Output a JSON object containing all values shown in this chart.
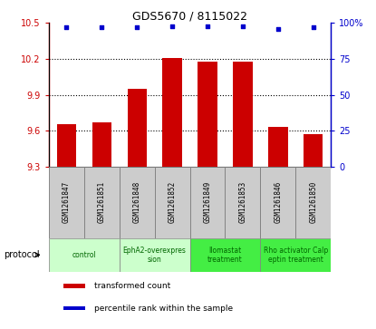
{
  "title": "GDS5670 / 8115022",
  "samples": [
    "GSM1261847",
    "GSM1261851",
    "GSM1261848",
    "GSM1261852",
    "GSM1261849",
    "GSM1261853",
    "GSM1261846",
    "GSM1261850"
  ],
  "bar_values": [
    9.65,
    9.67,
    9.95,
    10.21,
    10.18,
    10.18,
    9.63,
    9.57
  ],
  "dot_values": [
    97,
    97,
    97,
    98,
    98,
    98,
    96,
    97
  ],
  "ylim_left": [
    9.3,
    10.5
  ],
  "ylim_right": [
    0,
    100
  ],
  "yticks_left": [
    9.3,
    9.6,
    9.9,
    10.2,
    10.5
  ],
  "yticks_right": [
    0,
    25,
    50,
    75,
    100
  ],
  "bar_color": "#cc0000",
  "dot_color": "#0000cc",
  "protocol_groups": [
    {
      "label": "control",
      "start": 0,
      "end": 1,
      "color": "#ccffcc"
    },
    {
      "label": "EphA2-overexpres\nsion",
      "start": 2,
      "end": 3,
      "color": "#ccffcc"
    },
    {
      "label": "Ilomastat\ntreatment",
      "start": 4,
      "end": 5,
      "color": "#44ee44"
    },
    {
      "label": "Rho activator Calp\neptin treatment",
      "start": 6,
      "end": 7,
      "color": "#44ee44"
    }
  ],
  "legend_bar_label": "transformed count",
  "legend_dot_label": "percentile rank within the sample",
  "protocol_label": "protocol",
  "background_color": "#ffffff",
  "tick_label_color_left": "#cc0000",
  "tick_label_color_right": "#0000cc",
  "bar_bottom": 9.3,
  "sample_box_color": "#cccccc",
  "grid_color": "#000000"
}
